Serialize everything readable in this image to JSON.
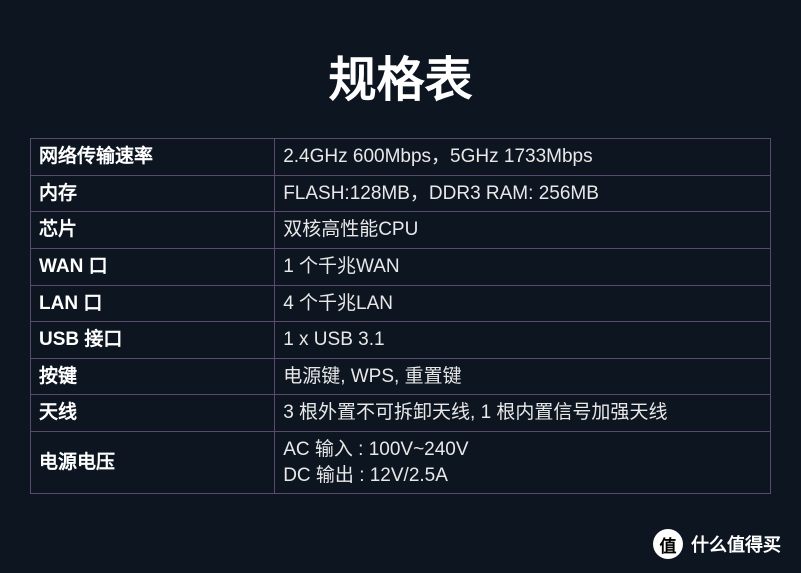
{
  "title": "规格表",
  "background_color": "#0d1520",
  "border_color": "#5a4a6e",
  "text_color": "#e8e8e8",
  "label_color": "#ffffff",
  "table": {
    "rows": [
      {
        "label": "网络传输速率",
        "value": "2.4GHz 600Mbps，5GHz 1733Mbps"
      },
      {
        "label": "内存",
        "value": "FLASH:128MB，DDR3 RAM: 256MB"
      },
      {
        "label": "芯片",
        "value": "双核高性能CPU"
      },
      {
        "label": "WAN 口",
        "value": "1 个千兆WAN"
      },
      {
        "label": "LAN   口",
        "value": "4 个千兆LAN"
      },
      {
        "label": "USB 接口",
        "value": "1 x USB 3.1"
      },
      {
        "label": "按键",
        "value": "电源键, WPS, 重置键"
      },
      {
        "label": "天线",
        "value": "3 根外置不可拆卸天线, 1 根内置信号加强天线"
      },
      {
        "label": "电源电压",
        "value": "AC 输入 : 100V~240V\nDC 输出 : 12V/2.5A"
      }
    ]
  },
  "watermark": {
    "badge": "值",
    "text": "什么值得买"
  }
}
